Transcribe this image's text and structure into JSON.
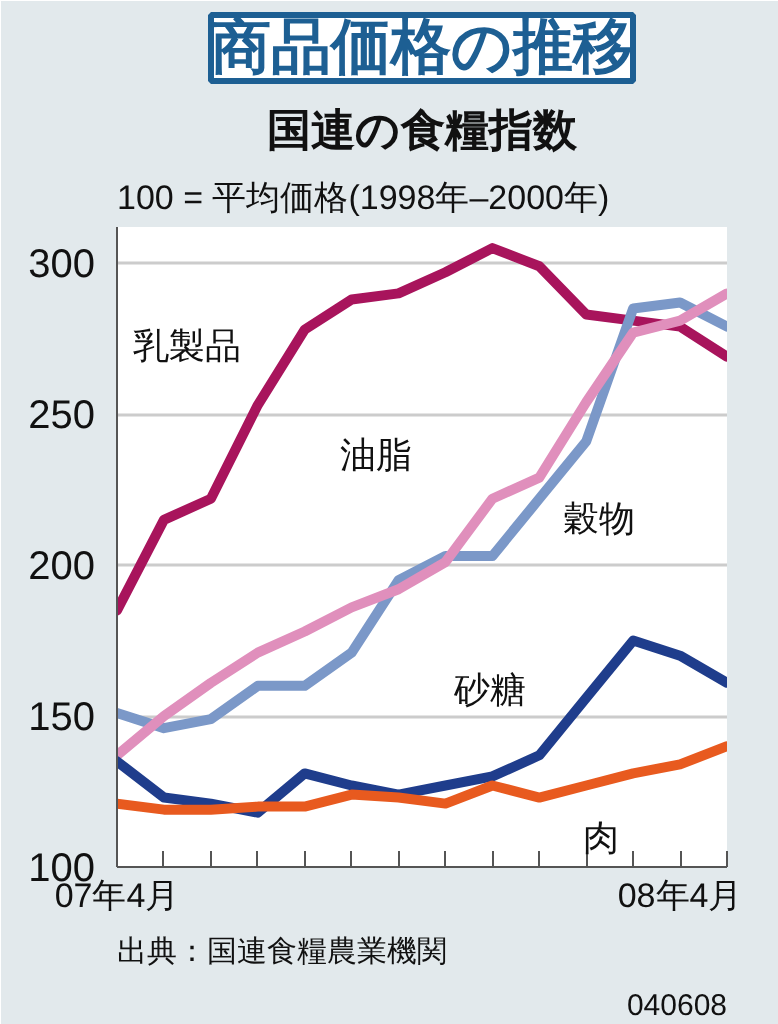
{
  "chart_data": {
    "type": "line",
    "title": "商品価格の推移",
    "subtitle": "国連の食糧指数",
    "ylabel": "100 = 平均価格(1998年–2000年)",
    "categories": [
      "07年4月",
      null,
      null,
      null,
      null,
      null,
      null,
      null,
      null,
      null,
      null,
      null,
      "08年4月",
      null
    ],
    "series": [
      {
        "name": "乳製品",
        "color": "#a8145c",
        "values": [
          185,
          215,
          222,
          253,
          278,
          288,
          290,
          297,
          305,
          299,
          283,
          281,
          279,
          269
        ]
      },
      {
        "name": "穀物",
        "color": "#7b98c8",
        "values": [
          151,
          146,
          149,
          160,
          160,
          171,
          195,
          203,
          203,
          222,
          241,
          285,
          287,
          279
        ]
      },
      {
        "name": "油脂",
        "color": "#e08fbc",
        "values": [
          137,
          150,
          161,
          171,
          178,
          186,
          192,
          201,
          222,
          229,
          254,
          277,
          281,
          290
        ]
      },
      {
        "name": "砂糖",
        "color": "#1f3d8c",
        "values": [
          135,
          123,
          121,
          118,
          131,
          127,
          124,
          127,
          130,
          137,
          156,
          175,
          170,
          161
        ]
      },
      {
        "name": "肉",
        "color": "#e85a1f",
        "values": [
          121,
          119,
          119,
          120,
          120,
          124,
          123,
          121,
          127,
          123,
          127,
          131,
          134,
          140
        ]
      }
    ],
    "ylim": [
      100,
      312
    ],
    "yticks": [
      100,
      150,
      200,
      250,
      300
    ],
    "grid": "y",
    "legend": false,
    "marker": "none",
    "line_style": "solid",
    "annotations": [
      "出典：国連食糧農業機関",
      "040608"
    ]
  }
}
